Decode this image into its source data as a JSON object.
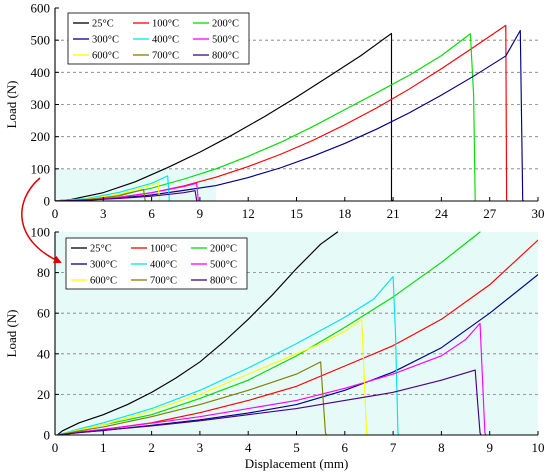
{
  "chart_data": [
    {
      "type": "line",
      "xlabel": "",
      "ylabel": "Load (N)",
      "xlim": [
        0,
        30
      ],
      "ylim": [
        0,
        600
      ],
      "x_ticks": [
        "0",
        "3",
        "6",
        "9",
        "12",
        "15",
        "18",
        "21",
        "24",
        "27",
        "30"
      ],
      "y_ticks": [
        "0",
        "100",
        "200",
        "300",
        "400",
        "500",
        "600"
      ],
      "grid": "horizontal dashed",
      "legend_position": "top-left",
      "highlight_region": {
        "x": [
          0,
          10
        ],
        "y": [
          0,
          100
        ]
      },
      "series": [
        {
          "name": "25°C",
          "color": "#000000",
          "points": [
            [
              0,
              0
            ],
            [
              1,
              5
            ],
            [
              3,
              26
            ],
            [
              5,
              60
            ],
            [
              7,
              104
            ],
            [
              9,
              152
            ],
            [
              11,
              205
            ],
            [
              13,
              262
            ],
            [
              15,
              323
            ],
            [
              17,
              387
            ],
            [
              19,
              452
            ],
            [
              20.9,
              521
            ],
            [
              20.9,
              3
            ],
            [
              21.0,
              0
            ]
          ]
        },
        {
          "name": "100°C",
          "color": "#ff0000",
          "points": [
            [
              0,
              0
            ],
            [
              2,
              3
            ],
            [
              4,
              11
            ],
            [
              6,
              26
            ],
            [
              8,
              47
            ],
            [
              10,
              74
            ],
            [
              12,
              107
            ],
            [
              14,
              145
            ],
            [
              16,
              188
            ],
            [
              18,
              237
            ],
            [
              20,
              290
            ],
            [
              22,
              348
            ],
            [
              24,
              411
            ],
            [
              26,
              478
            ],
            [
              28,
              546
            ],
            [
              28.05,
              5
            ],
            [
              28.1,
              0
            ]
          ]
        },
        {
          "name": "200°C",
          "color": "#00dd00",
          "points": [
            [
              0,
              0
            ],
            [
              2,
              5
            ],
            [
              4,
              19
            ],
            [
              6,
              40
            ],
            [
              8,
              68
            ],
            [
              10,
              100
            ],
            [
              12,
              139
            ],
            [
              14,
              182
            ],
            [
              16,
              231
            ],
            [
              18,
              284
            ],
            [
              20,
              337
            ],
            [
              22,
              391
            ],
            [
              24,
              452
            ],
            [
              25.8,
              520
            ],
            [
              26,
              330
            ],
            [
              26.1,
              0
            ]
          ]
        },
        {
          "name": "300°C",
          "color": "#00008b",
          "points": [
            [
              0,
              0
            ],
            [
              2,
              3
            ],
            [
              4,
              9
            ],
            [
              6,
              19
            ],
            [
              8,
              33
            ],
            [
              10,
              48
            ],
            [
              12,
              73
            ],
            [
              14,
              103
            ],
            [
              16,
              139
            ],
            [
              18,
              179
            ],
            [
              20,
              224
            ],
            [
              22,
              274
            ],
            [
              24,
              329
            ],
            [
              26,
              388
            ],
            [
              28,
              451
            ],
            [
              28.9,
              530
            ],
            [
              29.05,
              3
            ],
            [
              29.1,
              0
            ]
          ]
        },
        {
          "name": "400°C",
          "color": "#00e5ee",
          "points": [
            [
              0,
              0
            ],
            [
              2,
              8
            ],
            [
              4,
              27
            ],
            [
              6,
              55
            ],
            [
              7.0,
              78
            ],
            [
              7.1,
              2
            ],
            [
              7.12,
              0
            ]
          ]
        },
        {
          "name": "500°C",
          "color": "#ff00ff",
          "points": [
            [
              0,
              0
            ],
            [
              2,
              4
            ],
            [
              4,
              12
            ],
            [
              6,
              26
            ],
            [
              8,
              45
            ],
            [
              8.8,
              55
            ],
            [
              8.9,
              2
            ],
            [
              8.92,
              0
            ]
          ]
        },
        {
          "name": "600°C",
          "color": "#ffff00",
          "points": [
            [
              0,
              0
            ],
            [
              2,
              6
            ],
            [
              4,
              21
            ],
            [
              6,
              50
            ],
            [
              6.4,
              57
            ],
            [
              6.5,
              2
            ],
            [
              6.52,
              0
            ]
          ]
        },
        {
          "name": "700°C",
          "color": "#808000",
          "points": [
            [
              0,
              0
            ],
            [
              2,
              5
            ],
            [
              4,
              16
            ],
            [
              5.5,
              36
            ],
            [
              5.6,
              2
            ],
            [
              5.62,
              0
            ]
          ]
        },
        {
          "name": "800°C",
          "color": "#4b0082",
          "points": [
            [
              0,
              0
            ],
            [
              2,
              3
            ],
            [
              4,
              8
            ],
            [
              6,
              15
            ],
            [
              8,
              26
            ],
            [
              8.7,
              32
            ],
            [
              8.8,
              2
            ],
            [
              8.82,
              0
            ]
          ]
        }
      ]
    },
    {
      "type": "line",
      "xlabel": "Displacement (mm)",
      "ylabel": "Load (N)",
      "xlim": [
        0,
        10
      ],
      "ylim": [
        0,
        100
      ],
      "x_ticks": [
        "0",
        "1",
        "2",
        "3",
        "4",
        "5",
        "6",
        "7",
        "8",
        "9",
        "10"
      ],
      "y_ticks": [
        "0",
        "20",
        "40",
        "60",
        "80",
        "100"
      ],
      "grid": "horizontal dashed",
      "legend_position": "top-left",
      "background": "#e6faf8",
      "series": [
        {
          "name": "25°C",
          "color": "#000000",
          "points": [
            [
              0.05,
              0
            ],
            [
              0.15,
              2
            ],
            [
              0.5,
              6
            ],
            [
              1,
              10
            ],
            [
              1.5,
              15
            ],
            [
              2,
              21
            ],
            [
              2.5,
              28
            ],
            [
              3,
              36
            ],
            [
              3.5,
              46
            ],
            [
              4,
              57
            ],
            [
              4.5,
              69
            ],
            [
              5,
              82
            ],
            [
              5.5,
              94
            ],
            [
              5.85,
              100
            ]
          ]
        },
        {
          "name": "100°C",
          "color": "#ff0000",
          "points": [
            [
              0.05,
              0
            ],
            [
              0.5,
              1.5
            ],
            [
              1,
              2.7
            ],
            [
              2,
              6
            ],
            [
              3,
              11
            ],
            [
              4,
              17
            ],
            [
              5,
              24
            ],
            [
              6,
              34
            ],
            [
              7,
              44
            ],
            [
              8,
              57
            ],
            [
              9,
              74
            ],
            [
              10,
              96
            ]
          ]
        },
        {
          "name": "200°C",
          "color": "#00dd00",
          "points": [
            [
              0.05,
              0
            ],
            [
              0.5,
              2.5
            ],
            [
              1,
              5
            ],
            [
              2,
              10
            ],
            [
              3,
              18
            ],
            [
              4,
              27
            ],
            [
              5,
              39
            ],
            [
              6,
              53
            ],
            [
              7,
              68
            ],
            [
              8,
              85
            ],
            [
              8.8,
              100
            ]
          ]
        },
        {
          "name": "300°C",
          "color": "#00008b",
          "points": [
            [
              0.05,
              0
            ],
            [
              0.5,
              1.2
            ],
            [
              1,
              2.2
            ],
            [
              2,
              4.8
            ],
            [
              3,
              7.5
            ],
            [
              4,
              10.8
            ],
            [
              5,
              15
            ],
            [
              6,
              22
            ],
            [
              7,
              31
            ],
            [
              8,
              43
            ],
            [
              9,
              60
            ],
            [
              10,
              79
            ]
          ]
        },
        {
          "name": "400°C",
          "color": "#00e5ee",
          "points": [
            [
              0.05,
              0
            ],
            [
              0.5,
              3
            ],
            [
              1,
              6
            ],
            [
              2,
              13
            ],
            [
              3,
              22
            ],
            [
              4,
              33
            ],
            [
              5,
              45
            ],
            [
              6,
              58
            ],
            [
              6.6,
              67
            ],
            [
              7.0,
              78
            ],
            [
              7.05,
              50
            ],
            [
              7.1,
              1
            ],
            [
              7.12,
              0
            ]
          ]
        },
        {
          "name": "500°C",
          "color": "#ff00ff",
          "points": [
            [
              0.05,
              0
            ],
            [
              0.5,
              1.4
            ],
            [
              1,
              2.8
            ],
            [
              2,
              5.8
            ],
            [
              3,
              9
            ],
            [
              4,
              13
            ],
            [
              5,
              17
            ],
            [
              6,
              23
            ],
            [
              7,
              30
            ],
            [
              8,
              39
            ],
            [
              8.5,
              47
            ],
            [
              8.8,
              55
            ],
            [
              8.85,
              28
            ],
            [
              8.9,
              1
            ],
            [
              8.92,
              0
            ]
          ]
        },
        {
          "name": "600°C",
          "color": "#ffff00",
          "points": [
            [
              0.05,
              0
            ],
            [
              0.5,
              2.5
            ],
            [
              1,
              5
            ],
            [
              2,
              12
            ],
            [
              3,
              20
            ],
            [
              4,
              30
            ],
            [
              5,
              40
            ],
            [
              5.5,
              45
            ],
            [
              6,
              51
            ],
            [
              6.35,
              57
            ],
            [
              6.4,
              30
            ],
            [
              6.45,
              1
            ],
            [
              6.47,
              0
            ]
          ]
        },
        {
          "name": "700°C",
          "color": "#808000",
          "points": [
            [
              0.05,
              0
            ],
            [
              0.5,
              2
            ],
            [
              1,
              4
            ],
            [
              2,
              9
            ],
            [
              3,
              15
            ],
            [
              4,
              22
            ],
            [
              5,
              30
            ],
            [
              5.5,
              36
            ],
            [
              5.55,
              18
            ],
            [
              5.6,
              1
            ],
            [
              5.62,
              0
            ]
          ]
        },
        {
          "name": "800°C",
          "color": "#4b0082",
          "points": [
            [
              0.05,
              0
            ],
            [
              0.5,
              1.2
            ],
            [
              1,
              2.3
            ],
            [
              2,
              4.5
            ],
            [
              3,
              7
            ],
            [
              4,
              10
            ],
            [
              5,
              13
            ],
            [
              6,
              17
            ],
            [
              7,
              21
            ],
            [
              8,
              27
            ],
            [
              8.7,
              32
            ],
            [
              8.75,
              16
            ],
            [
              8.8,
              1
            ],
            [
              8.82,
              0
            ]
          ]
        }
      ]
    }
  ]
}
